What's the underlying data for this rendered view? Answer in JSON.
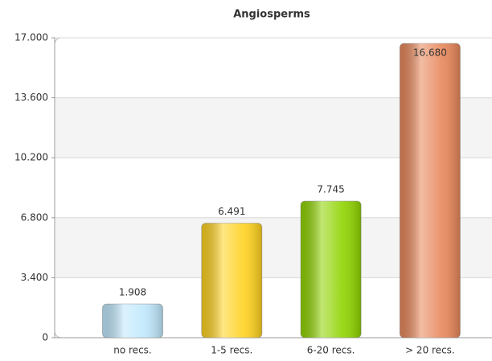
{
  "chart_data": {
    "type": "bar",
    "title": "Angiosperms",
    "categories": [
      "no recs.",
      "1-5 recs.",
      "6-20 recs.",
      "> 20 recs."
    ],
    "values": [
      1908,
      6491,
      7745,
      16680
    ],
    "value_labels": [
      "1.908",
      "6.491",
      "7.745",
      "16.680"
    ],
    "colors": [
      "#bfe8fc",
      "#ffd21f",
      "#8fd400",
      "#e8875a"
    ],
    "ylim": [
      0,
      17000
    ],
    "yticks": [
      0,
      {
        "value": 3400,
        "label": "3.400"
      },
      {
        "value": 6800,
        "label": "6.800"
      },
      {
        "value": 10200,
        "label": "10.200"
      },
      {
        "value": 13600,
        "label": "13.600"
      },
      {
        "value": 17000,
        "label": "17.000"
      }
    ],
    "grid": true
  }
}
